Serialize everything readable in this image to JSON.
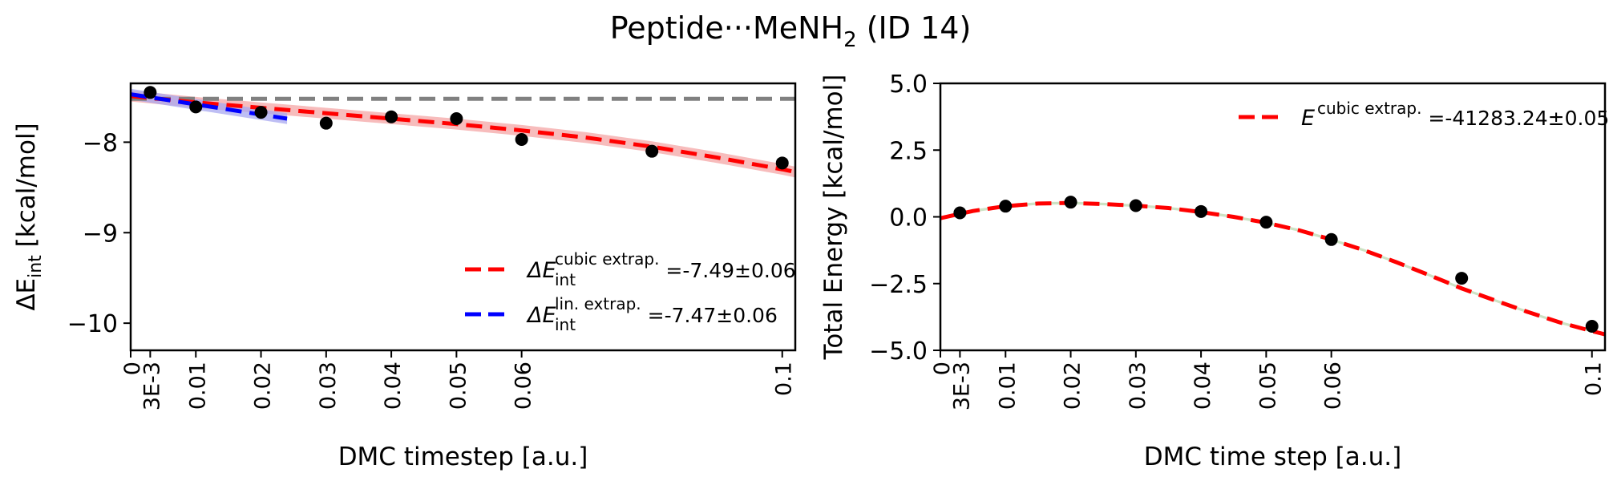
{
  "figure": {
    "title_main": "Peptide···MeNH",
    "title_sub": "2",
    "title_tail": " (ID 14)"
  },
  "chart_data": [
    {
      "type": "scatter",
      "xlabel": "DMC timestep [a.u.]",
      "ylabel": "ΔE",
      "ylabel_sub": "int",
      "ylabel_unit": " [kcal/mol]",
      "xlim": [
        0,
        0.102
      ],
      "ylim": [
        -10.3,
        -7.35
      ],
      "x_ticks": [
        0,
        0.003,
        0.01,
        0.02,
        0.03,
        0.04,
        0.05,
        0.06,
        0.1
      ],
      "x_tick_labels": [
        "0",
        "3E-3",
        "0.01",
        "0.02",
        "0.03",
        "0.04",
        "0.05",
        "0.06",
        "0.1"
      ],
      "y_ticks": [
        -8,
        -9,
        -10
      ],
      "y_tick_labels": [
        "−8",
        "−9",
        "−10"
      ],
      "points": {
        "x": [
          0.003,
          0.01,
          0.02,
          0.03,
          0.04,
          0.05,
          0.06,
          0.08,
          0.1
        ],
        "y": [
          -7.45,
          -7.61,
          -7.67,
          -7.79,
          -7.72,
          -7.74,
          -7.97,
          -8.1,
          -8.23
        ]
      },
      "reference_line": {
        "y": -7.52,
        "color": "#808080"
      },
      "series": [
        {
          "name": "cubic extrap.",
          "color": "#ff0000",
          "band_color": "#f4a6a6",
          "x": [
            0,
            0.01,
            0.02,
            0.03,
            0.04,
            0.05,
            0.06,
            0.07,
            0.08,
            0.09,
            0.1,
            0.102
          ],
          "y": [
            -7.49,
            -7.56,
            -7.62,
            -7.68,
            -7.74,
            -7.8,
            -7.87,
            -7.95,
            -8.05,
            -8.17,
            -8.3,
            -8.33
          ],
          "band": 0.06
        },
        {
          "name": "lin. extrap.",
          "color": "#0000ff",
          "band_color": "#a8a8f0",
          "x": [
            0,
            0.024
          ],
          "y": [
            -7.47,
            -7.74
          ],
          "band": 0.06
        }
      ],
      "legend": {
        "position": "lower-right",
        "entries": [
          {
            "symbol": "ΔE",
            "sub": "int",
            "sup": "cubic extrap.",
            "value": "=-7.49±0.06"
          },
          {
            "symbol": "ΔE",
            "sub": "int",
            "sup": "lin. extrap.",
            "value": "=-7.47±0.06"
          }
        ]
      }
    },
    {
      "type": "scatter",
      "xlabel": "DMC time step [a.u.]",
      "ylabel": "Total Energy [kcal/mol]",
      "xlim": [
        0,
        0.102
      ],
      "ylim": [
        -5.0,
        5.0
      ],
      "x_ticks": [
        0,
        0.003,
        0.01,
        0.02,
        0.03,
        0.04,
        0.05,
        0.06,
        0.1
      ],
      "x_tick_labels": [
        "0",
        "3E-3",
        "0.01",
        "0.02",
        "0.03",
        "0.04",
        "0.05",
        "0.06",
        "0.1"
      ],
      "y_ticks": [
        5.0,
        2.5,
        0.0,
        -2.5,
        -5.0
      ],
      "y_tick_labels": [
        "5.0",
        "2.5",
        "0.0",
        "−2.5",
        "−5.0"
      ],
      "points": {
        "x": [
          0.003,
          0.01,
          0.02,
          0.03,
          0.04,
          0.05,
          0.06,
          0.08,
          0.1
        ],
        "y": [
          0.15,
          0.4,
          0.55,
          0.42,
          0.2,
          -0.2,
          -0.85,
          -2.3,
          -4.1
        ]
      },
      "series": [
        {
          "name": "cubic extrap.",
          "color": "#ff0000",
          "band_color": "#bcd8b0",
          "x": [
            0,
            0.005,
            0.01,
            0.015,
            0.02,
            0.025,
            0.03,
            0.035,
            0.04,
            0.045,
            0.05,
            0.055,
            0.06,
            0.065,
            0.07,
            0.075,
            0.08,
            0.085,
            0.09,
            0.095,
            0.1,
            0.102
          ],
          "y": [
            -0.05,
            0.22,
            0.4,
            0.5,
            0.52,
            0.48,
            0.42,
            0.33,
            0.18,
            0.0,
            -0.22,
            -0.5,
            -0.85,
            -1.25,
            -1.7,
            -2.18,
            -2.68,
            -3.12,
            -3.55,
            -3.95,
            -4.28,
            -4.4
          ],
          "band": 0.05
        }
      ],
      "legend": {
        "position": "upper-right",
        "entries": [
          {
            "symbol": "E",
            "sub": "",
            "sup": "cubic extrap.",
            "value": "=-41283.24±0.05"
          }
        ]
      }
    }
  ]
}
